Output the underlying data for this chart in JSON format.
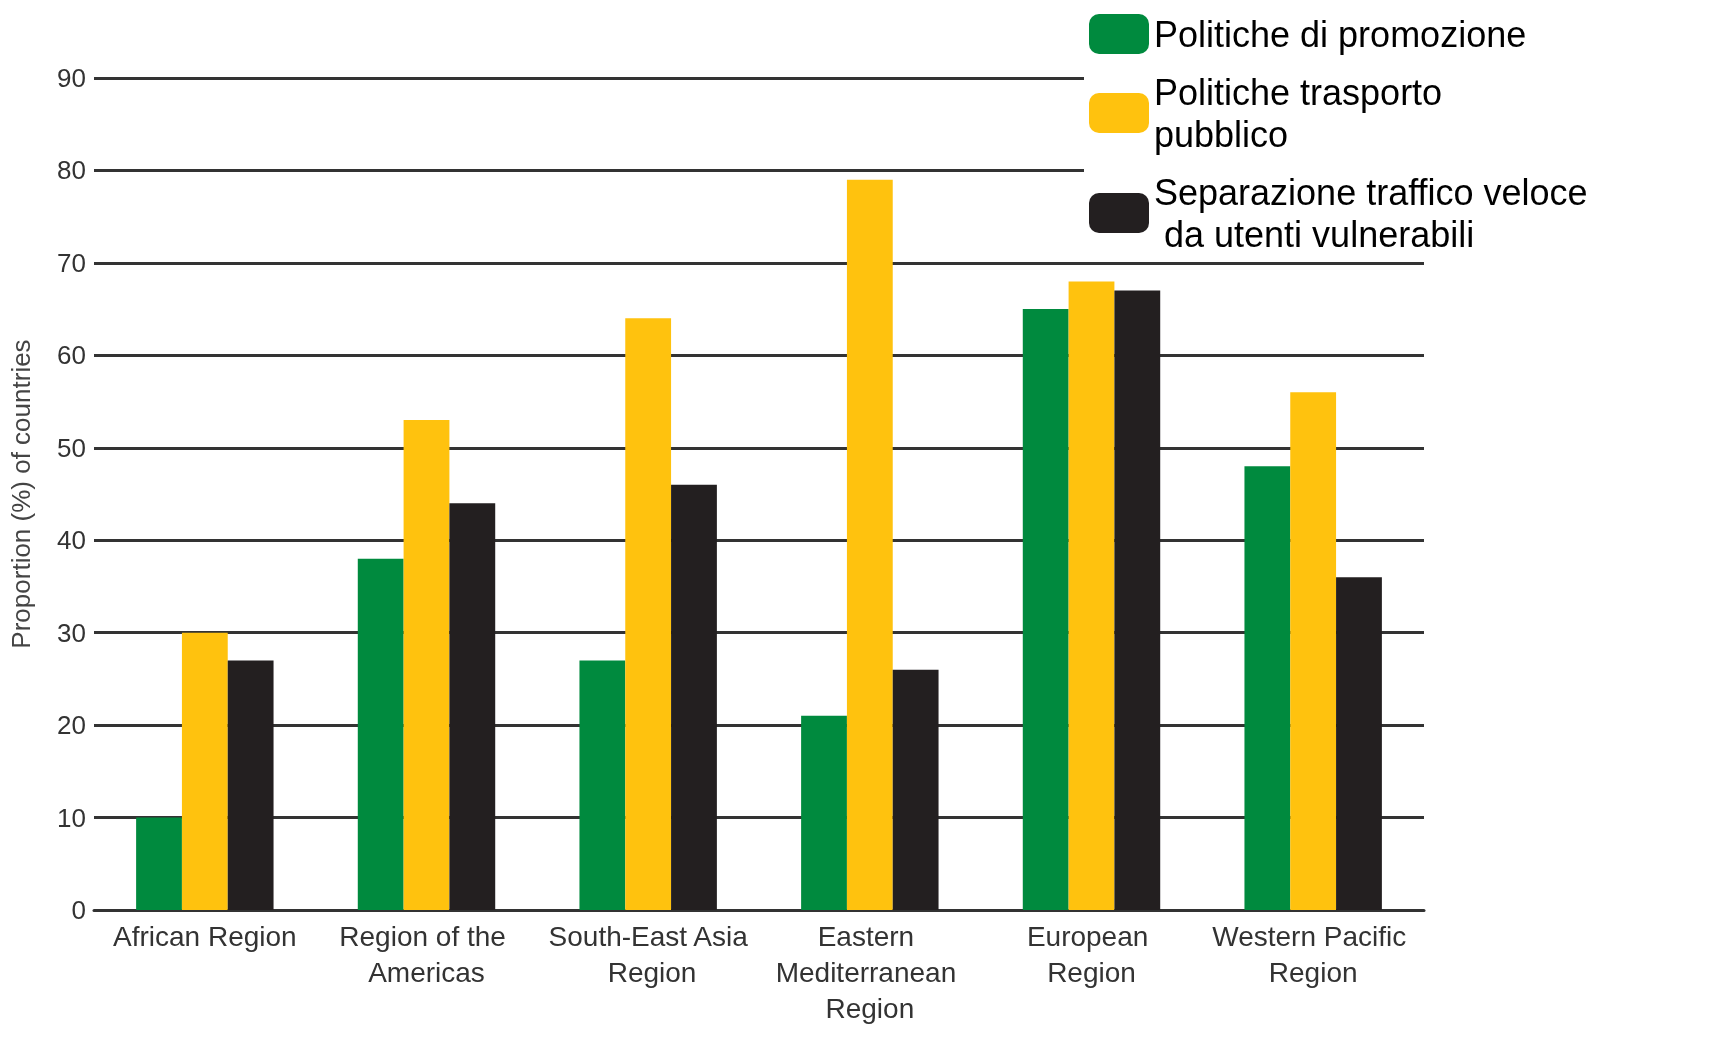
{
  "chart_data": {
    "type": "bar",
    "ylabel": "Proportion (%) of countries",
    "categories": [
      "African Region",
      "Region of the Americas",
      "South-East Asia Region",
      "Eastern Mediterranean Region",
      "European Region",
      "Western Pacific Region"
    ],
    "series": [
      {
        "name": "Politiche di promozione",
        "color": "#008a3e",
        "values": [
          10,
          38,
          27,
          21,
          65,
          48
        ]
      },
      {
        "name": "Politiche trasporto pubblico",
        "color": "#ffc20e",
        "values": [
          30,
          53,
          64,
          79,
          68,
          56
        ]
      },
      {
        "name": "Separazione traffico veloce da utenti vulnerabili",
        "color": "#231f20",
        "values": [
          27,
          44,
          46,
          26,
          67,
          36
        ]
      }
    ],
    "ylim": [
      0,
      90
    ],
    "yticks": [
      0,
      10,
      20,
      30,
      40,
      50,
      60,
      70,
      80,
      90
    ],
    "grid": "y",
    "legend": "top right"
  }
}
